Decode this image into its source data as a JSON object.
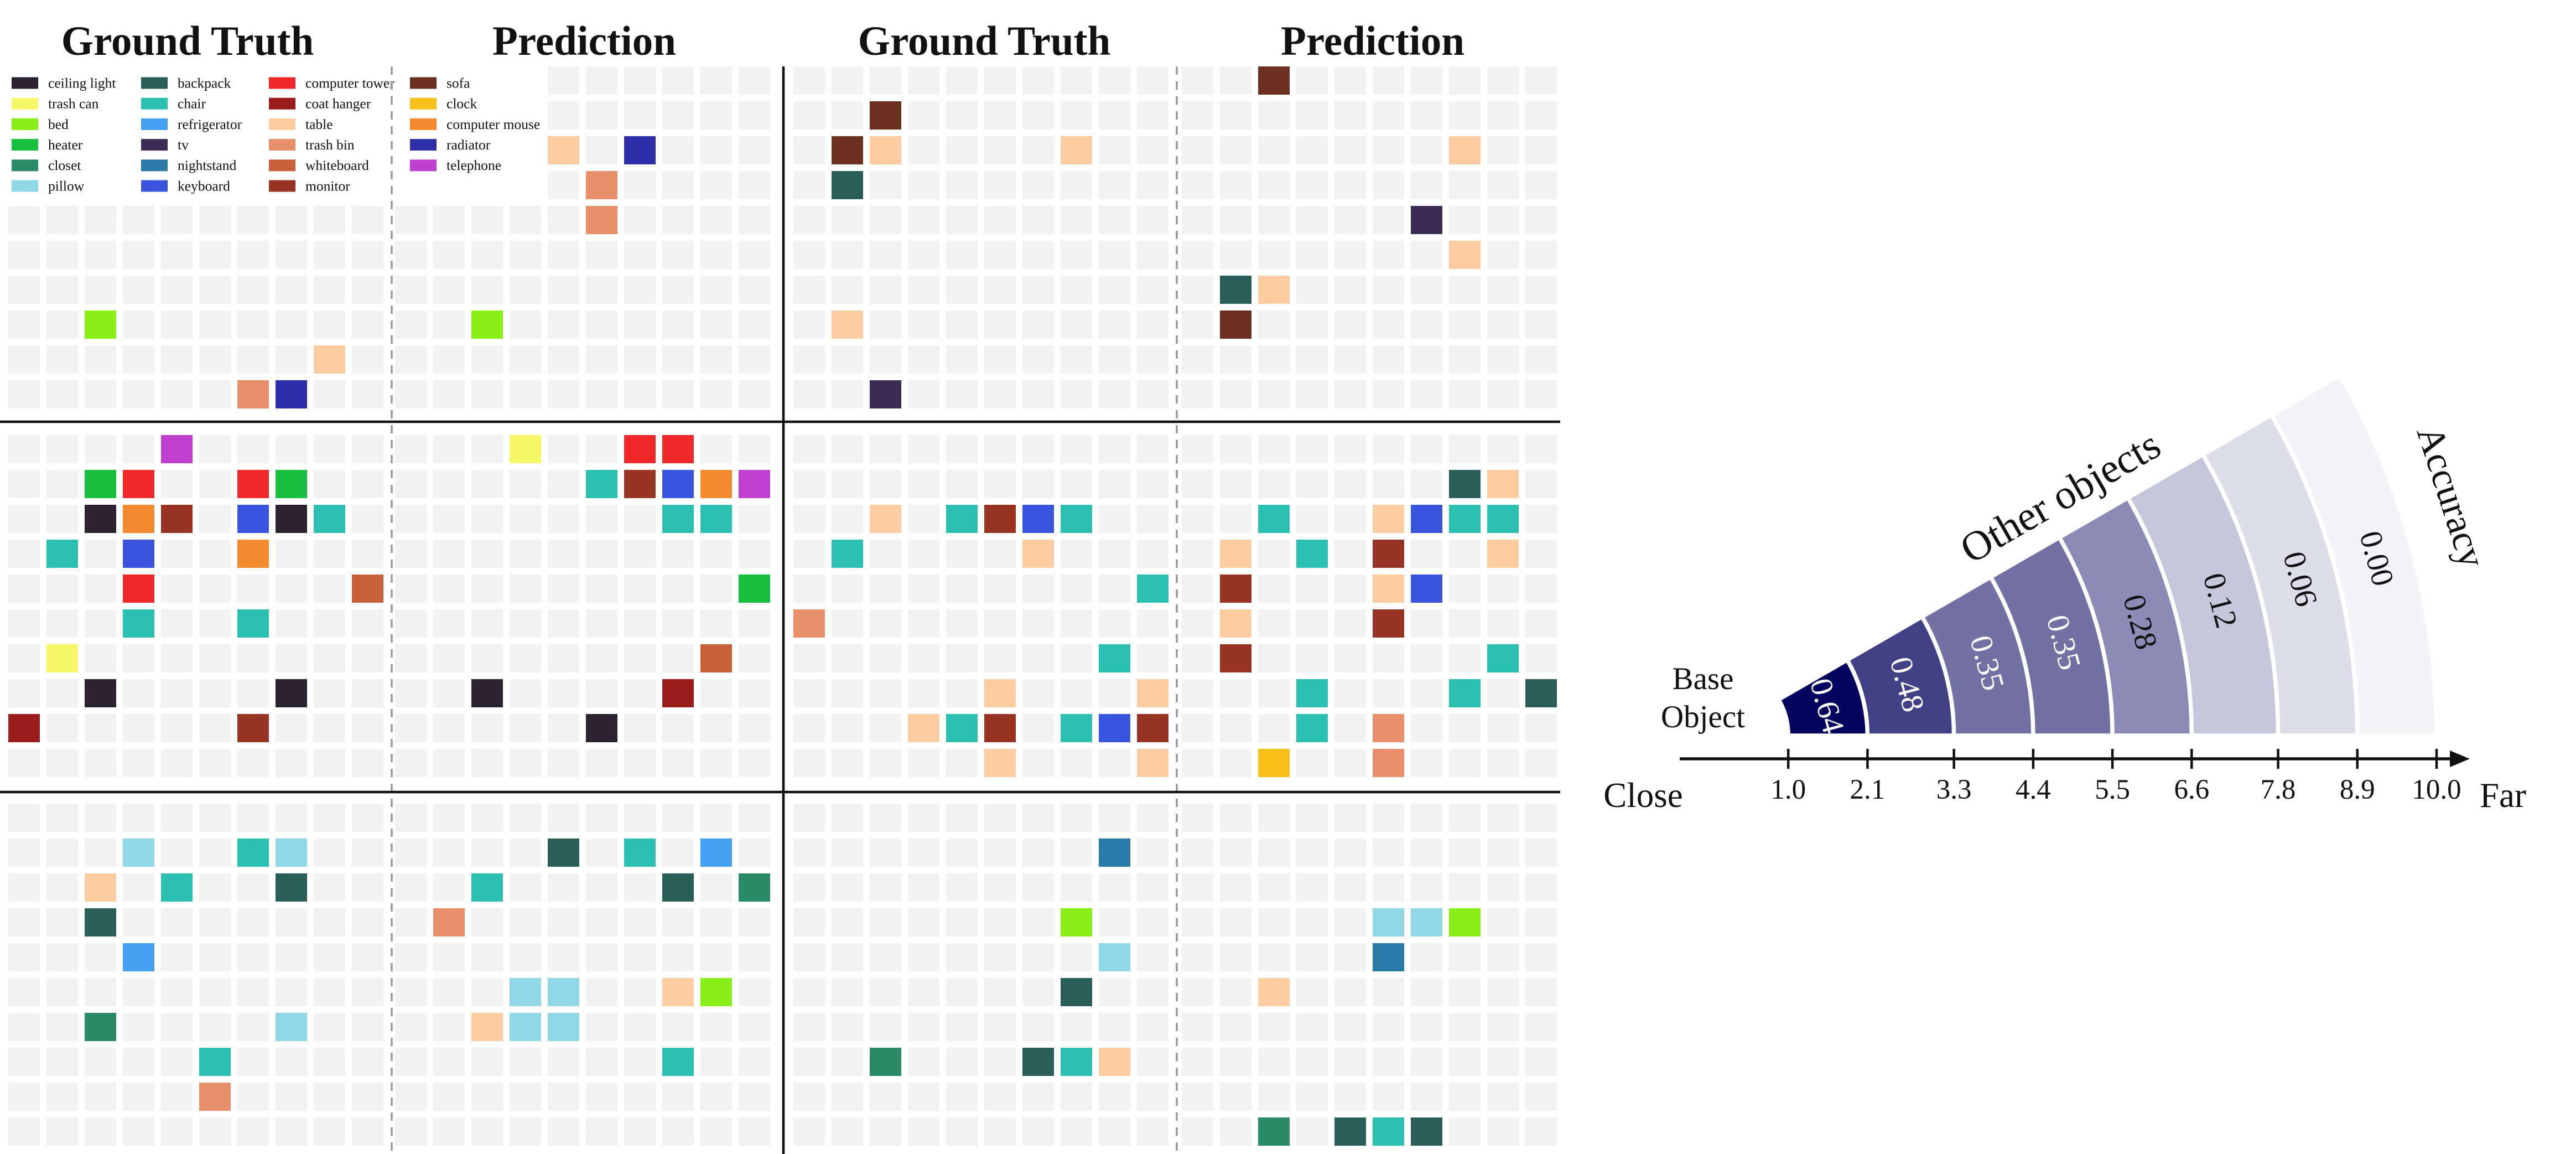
{
  "grid": {
    "titles": [
      "Ground Truth",
      "Prediction",
      "Ground Truth",
      "Prediction"
    ],
    "legend": [
      {
        "name": "ceiling light",
        "color": "#2b2430"
      },
      {
        "name": "trash can",
        "color": "#f7f76a"
      },
      {
        "name": "bed",
        "color": "#88f018"
      },
      {
        "name": "heater",
        "color": "#18c040"
      },
      {
        "name": "closet",
        "color": "#2a8c66"
      },
      {
        "name": "pillow",
        "color": "#90d8e8"
      },
      {
        "name": "backpack",
        "color": "#2a5e58"
      },
      {
        "name": "chair",
        "color": "#2cc0b0"
      },
      {
        "name": "refrigerator",
        "color": "#44a0f0"
      },
      {
        "name": "tv",
        "color": "#3a2c52"
      },
      {
        "name": "nightstand",
        "color": "#2a7aa8"
      },
      {
        "name": "keyboard",
        "color": "#3a55dd"
      },
      {
        "name": "computer tower",
        "color": "#f02a2a"
      },
      {
        "name": "coat hanger",
        "color": "#9a1c1c"
      },
      {
        "name": "table",
        "color": "#fdcca0"
      },
      {
        "name": "trash bin",
        "color": "#e8906a"
      },
      {
        "name": "whiteboard",
        "color": "#c8603a"
      },
      {
        "name": "monitor",
        "color": "#983424"
      },
      {
        "name": "sofa",
        "color": "#6b3020"
      },
      {
        "name": "clock",
        "color": "#f8c018"
      },
      {
        "name": "computer mouse",
        "color": "#f38a30"
      },
      {
        "name": "radiator",
        "color": "#2e2ea8"
      },
      {
        "name": "telephone",
        "color": "#c040d0"
      }
    ],
    "panels": [
      [
        {
          "cells": [
            [
              7,
              2,
              "bed"
            ],
            [
              8,
              8,
              "table"
            ],
            [
              9,
              6,
              "trash bin"
            ],
            [
              9,
              7,
              "radiator"
            ]
          ]
        },
        {
          "cells": [
            [
              2,
              4,
              "table"
            ],
            [
              2,
              6,
              "radiator"
            ],
            [
              3,
              5,
              "trash bin"
            ],
            [
              4,
              5,
              "trash bin"
            ],
            [
              7,
              2,
              "bed"
            ]
          ]
        },
        {
          "cells": [
            [
              1,
              2,
              "sofa"
            ],
            [
              2,
              1,
              "sofa"
            ],
            [
              2,
              2,
              "table"
            ],
            [
              2,
              7,
              "table"
            ],
            [
              3,
              1,
              "backpack"
            ],
            [
              7,
              1,
              "table"
            ],
            [
              9,
              2,
              "tv"
            ]
          ]
        },
        {
          "cells": [
            [
              0,
              2,
              "sofa"
            ],
            [
              2,
              7,
              "table"
            ],
            [
              4,
              6,
              "tv"
            ],
            [
              5,
              7,
              "table"
            ],
            [
              6,
              1,
              "backpack"
            ],
            [
              6,
              2,
              "table"
            ],
            [
              7,
              1,
              "sofa"
            ]
          ]
        }
      ],
      [
        {
          "cells": [
            [
              0,
              4,
              "telephone"
            ],
            [
              1,
              2,
              "heater"
            ],
            [
              1,
              3,
              "computer tower"
            ],
            [
              1,
              6,
              "computer tower"
            ],
            [
              1,
              7,
              "heater"
            ],
            [
              2,
              2,
              "ceiling light"
            ],
            [
              2,
              3,
              "computer mouse"
            ],
            [
              2,
              4,
              "monitor"
            ],
            [
              2,
              6,
              "keyboard"
            ],
            [
              2,
              7,
              "ceiling light"
            ],
            [
              2,
              8,
              "chair"
            ],
            [
              3,
              1,
              "chair"
            ],
            [
              3,
              3,
              "keyboard"
            ],
            [
              3,
              6,
              "computer mouse"
            ],
            [
              4,
              3,
              "computer tower"
            ],
            [
              4,
              9,
              "whiteboard"
            ],
            [
              5,
              3,
              "chair"
            ],
            [
              5,
              6,
              "chair"
            ],
            [
              6,
              1,
              "trash can"
            ],
            [
              7,
              2,
              "ceiling light"
            ],
            [
              7,
              7,
              "ceiling light"
            ],
            [
              8,
              0,
              "coat hanger"
            ],
            [
              8,
              6,
              "monitor"
            ]
          ]
        },
        {
          "cells": [
            [
              0,
              3,
              "trash can"
            ],
            [
              0,
              6,
              "computer tower"
            ],
            [
              0,
              7,
              "computer tower"
            ],
            [
              1,
              5,
              "chair"
            ],
            [
              1,
              6,
              "monitor"
            ],
            [
              1,
              7,
              "keyboard"
            ],
            [
              1,
              8,
              "computer mouse"
            ],
            [
              1,
              9,
              "telephone"
            ],
            [
              2,
              7,
              "chair"
            ],
            [
              2,
              8,
              "chair"
            ],
            [
              4,
              9,
              "heater"
            ],
            [
              6,
              8,
              "whiteboard"
            ],
            [
              7,
              2,
              "ceiling light"
            ],
            [
              7,
              7,
              "coat hanger"
            ],
            [
              8,
              5,
              "ceiling light"
            ]
          ]
        },
        {
          "cells": [
            [
              2,
              2,
              "table"
            ],
            [
              2,
              4,
              "chair"
            ],
            [
              2,
              5,
              "monitor"
            ],
            [
              2,
              6,
              "keyboard"
            ],
            [
              2,
              7,
              "chair"
            ],
            [
              3,
              1,
              "chair"
            ],
            [
              3,
              6,
              "table"
            ],
            [
              4,
              9,
              "chair"
            ],
            [
              5,
              0,
              "trash bin"
            ],
            [
              6,
              8,
              "chair"
            ],
            [
              7,
              5,
              "table"
            ],
            [
              7,
              9,
              "table"
            ],
            [
              8,
              3,
              "table"
            ],
            [
              8,
              4,
              "chair"
            ],
            [
              8,
              5,
              "monitor"
            ],
            [
              8,
              7,
              "chair"
            ],
            [
              8,
              8,
              "keyboard"
            ],
            [
              8,
              9,
              "monitor"
            ],
            [
              9,
              5,
              "table"
            ],
            [
              9,
              9,
              "table"
            ]
          ]
        },
        {
          "cells": [
            [
              1,
              7,
              "backpack"
            ],
            [
              1,
              8,
              "table"
            ],
            [
              2,
              2,
              "chair"
            ],
            [
              2,
              5,
              "table"
            ],
            [
              2,
              6,
              "keyboard"
            ],
            [
              2,
              7,
              "chair"
            ],
            [
              2,
              8,
              "chair"
            ],
            [
              3,
              1,
              "table"
            ],
            [
              3,
              3,
              "chair"
            ],
            [
              3,
              5,
              "monitor"
            ],
            [
              3,
              8,
              "table"
            ],
            [
              4,
              1,
              "monitor"
            ],
            [
              4,
              5,
              "table"
            ],
            [
              4,
              6,
              "keyboard"
            ],
            [
              5,
              1,
              "table"
            ],
            [
              5,
              5,
              "monitor"
            ],
            [
              6,
              1,
              "monitor"
            ],
            [
              6,
              8,
              "chair"
            ],
            [
              7,
              3,
              "chair"
            ],
            [
              7,
              7,
              "chair"
            ],
            [
              7,
              9,
              "backpack"
            ],
            [
              8,
              3,
              "chair"
            ],
            [
              8,
              5,
              "trash bin"
            ],
            [
              9,
              2,
              "clock"
            ],
            [
              9,
              5,
              "trash bin"
            ]
          ]
        }
      ],
      [
        {
          "cells": [
            [
              1,
              3,
              "pillow"
            ],
            [
              1,
              6,
              "chair"
            ],
            [
              1,
              7,
              "pillow"
            ],
            [
              2,
              2,
              "table"
            ],
            [
              2,
              4,
              "chair"
            ],
            [
              2,
              7,
              "backpack"
            ],
            [
              3,
              2,
              "backpack"
            ],
            [
              4,
              3,
              "refrigerator"
            ],
            [
              6,
              2,
              "closet"
            ],
            [
              6,
              7,
              "pillow"
            ],
            [
              7,
              5,
              "chair"
            ],
            [
              8,
              5,
              "trash bin"
            ]
          ]
        },
        {
          "cells": [
            [
              1,
              4,
              "backpack"
            ],
            [
              1,
              6,
              "chair"
            ],
            [
              1,
              8,
              "refrigerator"
            ],
            [
              2,
              2,
              "chair"
            ],
            [
              2,
              7,
              "backpack"
            ],
            [
              2,
              9,
              "closet"
            ],
            [
              3,
              1,
              "trash bin"
            ],
            [
              5,
              3,
              "pillow"
            ],
            [
              5,
              4,
              "pillow"
            ],
            [
              5,
              7,
              "table"
            ],
            [
              5,
              8,
              "bed"
            ],
            [
              6,
              2,
              "table"
            ],
            [
              6,
              3,
              "pillow"
            ],
            [
              6,
              4,
              "pillow"
            ],
            [
              7,
              7,
              "chair"
            ]
          ]
        },
        {
          "cells": [
            [
              1,
              8,
              "nightstand"
            ],
            [
              3,
              7,
              "bed"
            ],
            [
              4,
              8,
              "pillow"
            ],
            [
              5,
              7,
              "backpack"
            ],
            [
              7,
              2,
              "closet"
            ],
            [
              7,
              6,
              "backpack"
            ],
            [
              7,
              7,
              "chair"
            ],
            [
              7,
              8,
              "table"
            ]
          ]
        },
        {
          "cells": [
            [
              3,
              5,
              "pillow"
            ],
            [
              3,
              6,
              "pillow"
            ],
            [
              3,
              7,
              "bed"
            ],
            [
              4,
              5,
              "nightstand"
            ],
            [
              5,
              2,
              "table"
            ],
            [
              9,
              2,
              "closet"
            ],
            [
              9,
              4,
              "backpack"
            ],
            [
              9,
              5,
              "chair"
            ],
            [
              9,
              6,
              "backpack"
            ]
          ]
        }
      ]
    ]
  },
  "chart_data": {
    "type": "polar-bands",
    "inner_label": "Base Object",
    "band_label": "Other objects",
    "value_axis_label": "Accuracy",
    "near_label": "Close",
    "far_label": "Far",
    "values": [
      0.64,
      0.48,
      0.35,
      0.35,
      0.28,
      0.12,
      0.06,
      0
    ],
    "value_labels": [
      "0.64",
      "0.48",
      "0.35",
      "0.35",
      "0.28",
      "0.12",
      "0.06",
      "0.00"
    ],
    "color_low": "#f4f4f8",
    "color_high": "#05055f",
    "xlim": [
      0,
      10
    ],
    "xticks": [
      {
        "value": 1,
        "label": "1.0"
      },
      2.1,
      3.3,
      4.4,
      5.5,
      6.6,
      7.8,
      8.9,
      {
        "value": 10,
        "label": "10.0"
      }
    ]
  }
}
